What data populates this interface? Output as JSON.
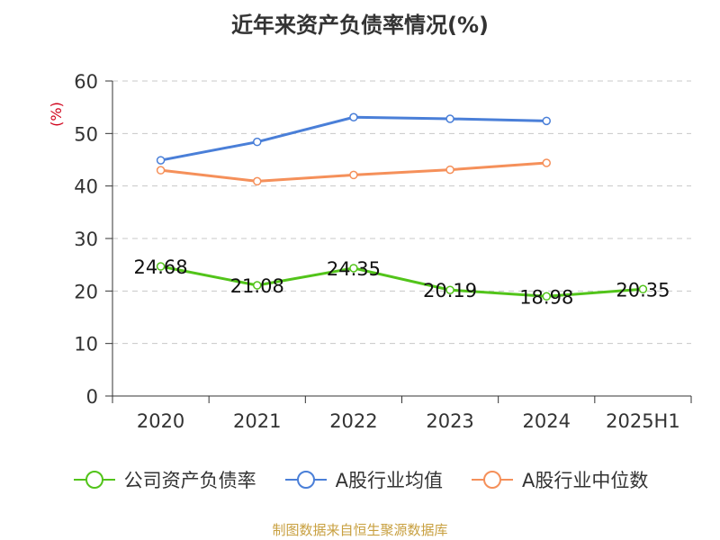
{
  "chart_data": {
    "type": "line",
    "title": "近年来资产负债率情况(%)",
    "ylabel": "(%)",
    "categories": [
      "2020",
      "2021",
      "2022",
      "2023",
      "2024",
      "2025H1"
    ],
    "ylim": [
      0,
      60
    ],
    "yticks": [
      "0",
      "10",
      "20",
      "30",
      "40",
      "50",
      "60"
    ],
    "grid": true,
    "legend_position": "bottom",
    "series": [
      {
        "name": "公司资产负债率",
        "color": "#52c41a",
        "values": [
          24.68,
          21.08,
          24.35,
          20.19,
          18.98,
          20.35
        ],
        "labels": [
          "24.68",
          "21.08",
          "24.35",
          "20.19",
          "18.98",
          "20.35"
        ]
      },
      {
        "name": "A股行业均值",
        "color": "#4a7fd8",
        "values": [
          44.9,
          48.4,
          53.1,
          52.8,
          52.4,
          null
        ]
      },
      {
        "name": "A股行业中位数",
        "color": "#f5905a",
        "values": [
          43.0,
          40.9,
          42.1,
          43.1,
          44.4,
          null
        ]
      }
    ]
  },
  "source": "制图数据来自恒生聚源数据库"
}
